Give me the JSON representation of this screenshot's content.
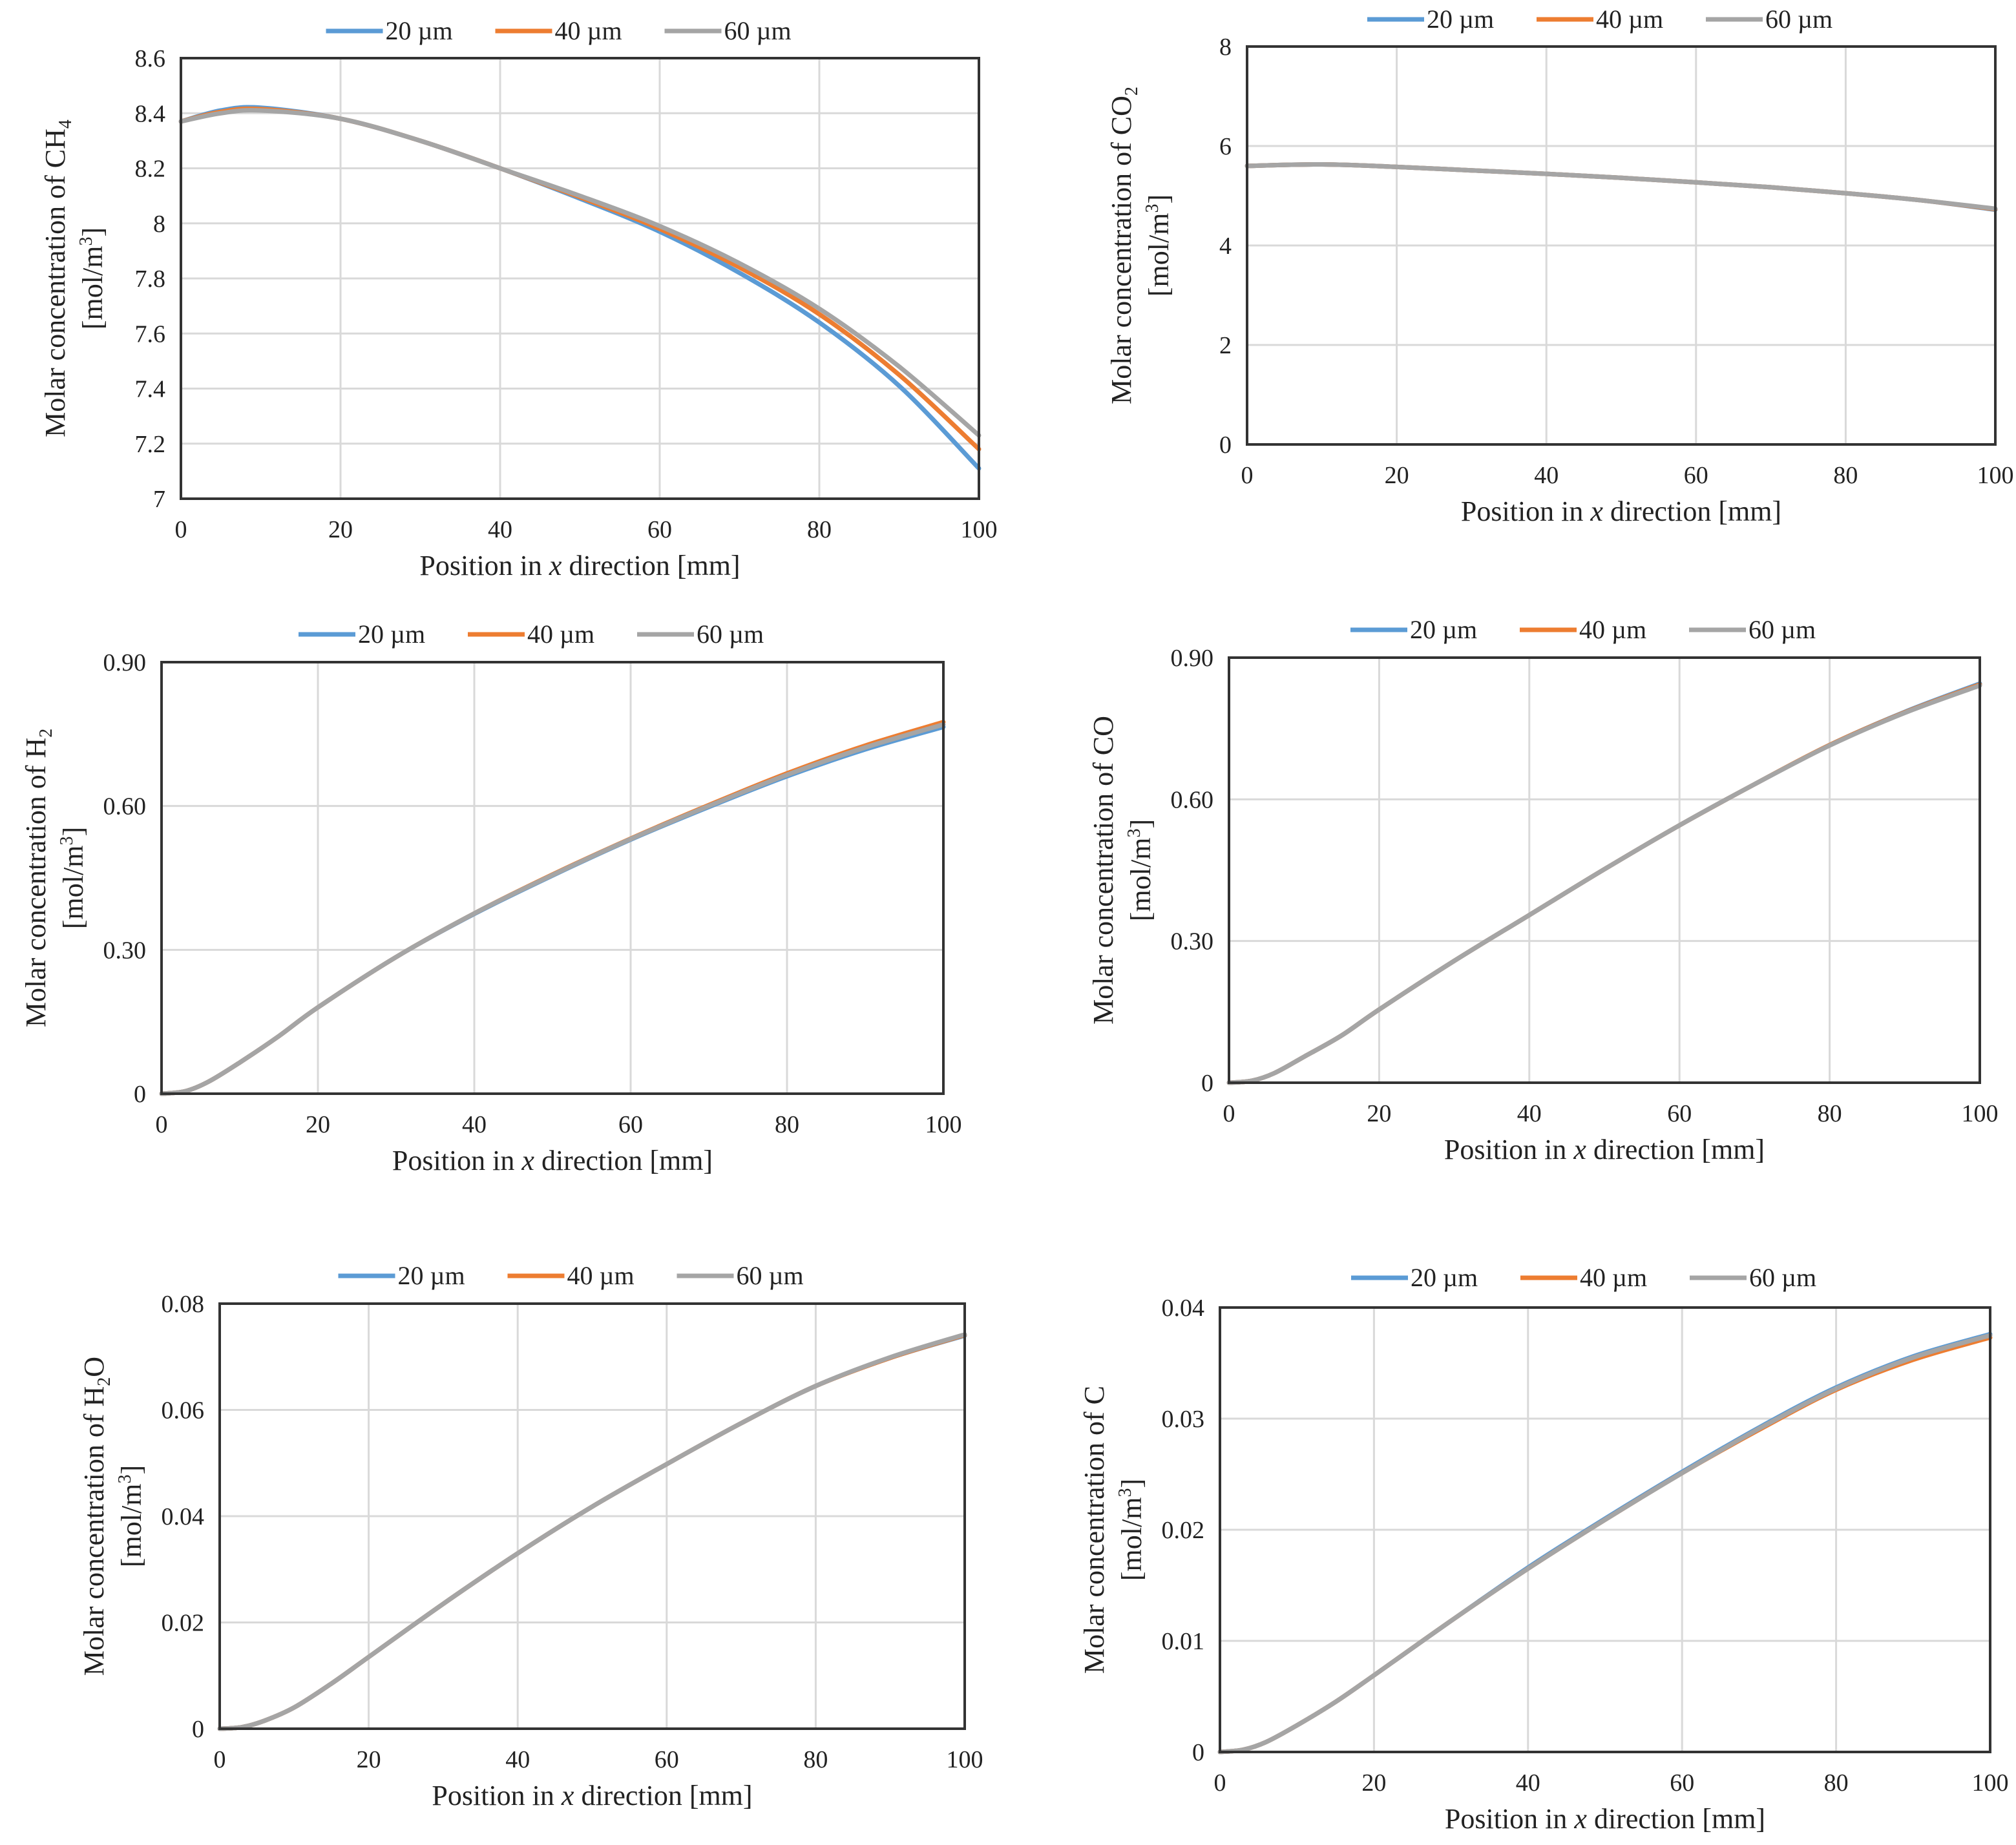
{
  "colors": {
    "s20": "#5B9BD5",
    "s40": "#ED7D31",
    "s60": "#A5A5A5",
    "grid": "#D9D9D9",
    "frame": "#333333"
  },
  "chart_data": [
    {
      "type": "line",
      "ylabel": "Molar concentration of CH",
      "ylabel_sub": "4",
      "unit": "[mol/m",
      "unit_sup": "3",
      "unit_end": "]",
      "xlabel_pre": "Position in ",
      "xlabel_var": "x",
      "xlabel_post": " direction [mm]",
      "xlim": [
        0,
        100
      ],
      "ylim": [
        7,
        8.6
      ],
      "xticks": [
        "0",
        "20",
        "40",
        "60",
        "80",
        "100"
      ],
      "yticks": [
        "7",
        "7.2",
        "7.4",
        "7.6",
        "7.8",
        "8",
        "8.2",
        "8.4",
        "8.6"
      ],
      "grid": true,
      "legend": "top-center",
      "x": [
        0,
        5,
        10,
        20,
        30,
        40,
        50,
        60,
        70,
        80,
        90,
        100
      ],
      "series": [
        {
          "name": "20 µm",
          "values": [
            8.37,
            8.41,
            8.42,
            8.38,
            8.3,
            8.2,
            8.09,
            7.97,
            7.82,
            7.64,
            7.41,
            7.11
          ]
        },
        {
          "name": "40 µm",
          "values": [
            8.37,
            8.405,
            8.415,
            8.38,
            8.3,
            8.2,
            8.095,
            7.98,
            7.84,
            7.67,
            7.45,
            7.18
          ]
        },
        {
          "name": "60 µm",
          "values": [
            8.37,
            8.4,
            8.41,
            8.38,
            8.3,
            8.2,
            8.1,
            7.99,
            7.855,
            7.69,
            7.48,
            7.23
          ]
        }
      ]
    },
    {
      "type": "line",
      "ylabel": "Molar concentration of CO",
      "ylabel_sub": "2",
      "unit": "[mol/m",
      "unit_sup": "3",
      "unit_end": "]",
      "xlabel_pre": "Position in ",
      "xlabel_var": "x",
      "xlabel_post": " direction [mm]",
      "xlim": [
        0,
        100
      ],
      "ylim": [
        0,
        8
      ],
      "xticks": [
        "0",
        "20",
        "40",
        "60",
        "80",
        "100"
      ],
      "yticks": [
        "0",
        "2",
        "4",
        "6",
        "8"
      ],
      "grid": true,
      "legend": "top-center",
      "x": [
        0,
        10,
        20,
        30,
        40,
        50,
        60,
        70,
        80,
        90,
        100
      ],
      "series": [
        {
          "name": "20 µm",
          "values": [
            5.6,
            5.63,
            5.58,
            5.51,
            5.44,
            5.36,
            5.27,
            5.17,
            5.05,
            4.91,
            4.72
          ]
        },
        {
          "name": "40 µm",
          "values": [
            5.6,
            5.63,
            5.58,
            5.51,
            5.44,
            5.36,
            5.27,
            5.17,
            5.05,
            4.91,
            4.73
          ]
        },
        {
          "name": "60 µm",
          "values": [
            5.6,
            5.63,
            5.58,
            5.51,
            5.44,
            5.36,
            5.27,
            5.17,
            5.05,
            4.91,
            4.74
          ]
        }
      ]
    },
    {
      "type": "line",
      "ylabel": "Molar concentration of H",
      "ylabel_sub": "2",
      "unit": "[mol/m",
      "unit_sup": "3",
      "unit_end": "]",
      "xlabel_pre": "Position in ",
      "xlabel_var": "x",
      "xlabel_post": " direction [mm]",
      "xlim": [
        0,
        100
      ],
      "ylim": [
        0,
        0.9
      ],
      "xticks": [
        "0",
        "20",
        "40",
        "60",
        "80",
        "100"
      ],
      "yticks": [
        "0",
        "0.30",
        "0.60",
        "0.90"
      ],
      "grid": true,
      "legend": "top-center",
      "x": [
        0,
        3,
        6,
        10,
        15,
        20,
        30,
        40,
        50,
        60,
        70,
        80,
        90,
        100
      ],
      "series": [
        {
          "name": "20 µm",
          "values": [
            0,
            0.005,
            0.025,
            0.065,
            0.12,
            0.18,
            0.285,
            0.375,
            0.455,
            0.53,
            0.598,
            0.662,
            0.718,
            0.765
          ]
        },
        {
          "name": "40 µm",
          "values": [
            0,
            0.005,
            0.025,
            0.065,
            0.12,
            0.18,
            0.285,
            0.376,
            0.457,
            0.532,
            0.602,
            0.668,
            0.726,
            0.775
          ]
        },
        {
          "name": "60 µm",
          "values": [
            0,
            0.005,
            0.025,
            0.065,
            0.12,
            0.18,
            0.285,
            0.376,
            0.456,
            0.531,
            0.6,
            0.665,
            0.722,
            0.77
          ]
        }
      ]
    },
    {
      "type": "line",
      "ylabel": "Molar concentration of CO",
      "ylabel_sub": "",
      "unit": "[mol/m",
      "unit_sup": "3",
      "unit_end": "]",
      "xlabel_pre": "Position in ",
      "xlabel_var": "x",
      "xlabel_post": " direction [mm]",
      "xlim": [
        0,
        100
      ],
      "ylim": [
        0,
        0.9
      ],
      "xticks": [
        "0",
        "20",
        "40",
        "60",
        "80",
        "100"
      ],
      "yticks": [
        "0",
        "0.30",
        "0.60",
        "0.90"
      ],
      "grid": true,
      "legend": "top-center",
      "x": [
        0,
        3,
        6,
        10,
        15,
        20,
        30,
        40,
        50,
        60,
        70,
        80,
        90,
        100
      ],
      "series": [
        {
          "name": "20 µm",
          "values": [
            0,
            0.004,
            0.02,
            0.055,
            0.1,
            0.155,
            0.258,
            0.355,
            0.452,
            0.545,
            0.632,
            0.715,
            0.785,
            0.845
          ]
        },
        {
          "name": "40 µm",
          "values": [
            0,
            0.004,
            0.02,
            0.055,
            0.1,
            0.155,
            0.258,
            0.355,
            0.452,
            0.545,
            0.632,
            0.715,
            0.784,
            0.843
          ]
        },
        {
          "name": "60 µm",
          "values": [
            0,
            0.004,
            0.02,
            0.055,
            0.1,
            0.155,
            0.258,
            0.355,
            0.452,
            0.545,
            0.632,
            0.714,
            0.783,
            0.841
          ]
        }
      ]
    },
    {
      "type": "line",
      "ylabel": "Molar concentration of H",
      "ylabel_sub": "2",
      "ylabel_post": "O",
      "unit": "[mol/m",
      "unit_sup": "3",
      "unit_end": "]",
      "xlabel_pre": "Position in ",
      "xlabel_var": "x",
      "xlabel_post": " direction [mm]",
      "xlim": [
        0,
        100
      ],
      "ylim": [
        0,
        0.08
      ],
      "xticks": [
        "0",
        "20",
        "40",
        "60",
        "80",
        "100"
      ],
      "yticks": [
        "0",
        "0.02",
        "0.04",
        "0.06",
        "0.08"
      ],
      "grid": true,
      "legend": "top-center",
      "x": [
        0,
        3,
        6,
        10,
        15,
        20,
        30,
        40,
        50,
        60,
        70,
        80,
        90,
        100
      ],
      "series": [
        {
          "name": "20 µm",
          "values": [
            0,
            0.0003,
            0.0015,
            0.004,
            0.0085,
            0.0135,
            0.0235,
            0.033,
            0.0418,
            0.0498,
            0.0575,
            0.0645,
            0.0698,
            0.074
          ]
        },
        {
          "name": "40 µm",
          "values": [
            0,
            0.0003,
            0.0015,
            0.004,
            0.0085,
            0.0135,
            0.0235,
            0.033,
            0.0418,
            0.0498,
            0.0575,
            0.0645,
            0.0698,
            0.0741
          ]
        },
        {
          "name": "60 µm",
          "values": [
            0,
            0.0003,
            0.0015,
            0.004,
            0.0085,
            0.0135,
            0.0235,
            0.033,
            0.0418,
            0.0498,
            0.0575,
            0.0645,
            0.0699,
            0.0742
          ]
        }
      ]
    },
    {
      "type": "line",
      "ylabel": "Molar concentration of C",
      "ylabel_sub": "",
      "unit": "[mol/m",
      "unit_sup": "3",
      "unit_end": "]",
      "xlabel_pre": "Position in ",
      "xlabel_var": "x",
      "xlabel_post": " direction [mm]",
      "xlim": [
        0,
        100
      ],
      "ylim": [
        0,
        0.04
      ],
      "xticks": [
        "0",
        "20",
        "40",
        "60",
        "80",
        "100"
      ],
      "yticks": [
        "0",
        "0.01",
        "0.02",
        "0.03",
        "0.04"
      ],
      "grid": true,
      "legend": "top-center",
      "x": [
        0,
        3,
        6,
        10,
        15,
        20,
        30,
        40,
        50,
        60,
        70,
        80,
        90,
        100
      ],
      "series": [
        {
          "name": "20 µm",
          "values": [
            0,
            0.0002,
            0.0009,
            0.0024,
            0.0045,
            0.0069,
            0.0118,
            0.0166,
            0.021,
            0.0252,
            0.0292,
            0.0328,
            0.0356,
            0.0376
          ]
        },
        {
          "name": "40 µm",
          "values": [
            0,
            0.0002,
            0.0009,
            0.0024,
            0.0045,
            0.0069,
            0.0118,
            0.0165,
            0.0209,
            0.0251,
            0.029,
            0.0326,
            0.0353,
            0.0373
          ]
        },
        {
          "name": "60 µm",
          "values": [
            0,
            0.0002,
            0.0009,
            0.0024,
            0.0045,
            0.0069,
            0.0118,
            0.0165,
            0.0209,
            0.0251,
            0.0291,
            0.0327,
            0.0355,
            0.0375
          ]
        }
      ]
    }
  ]
}
